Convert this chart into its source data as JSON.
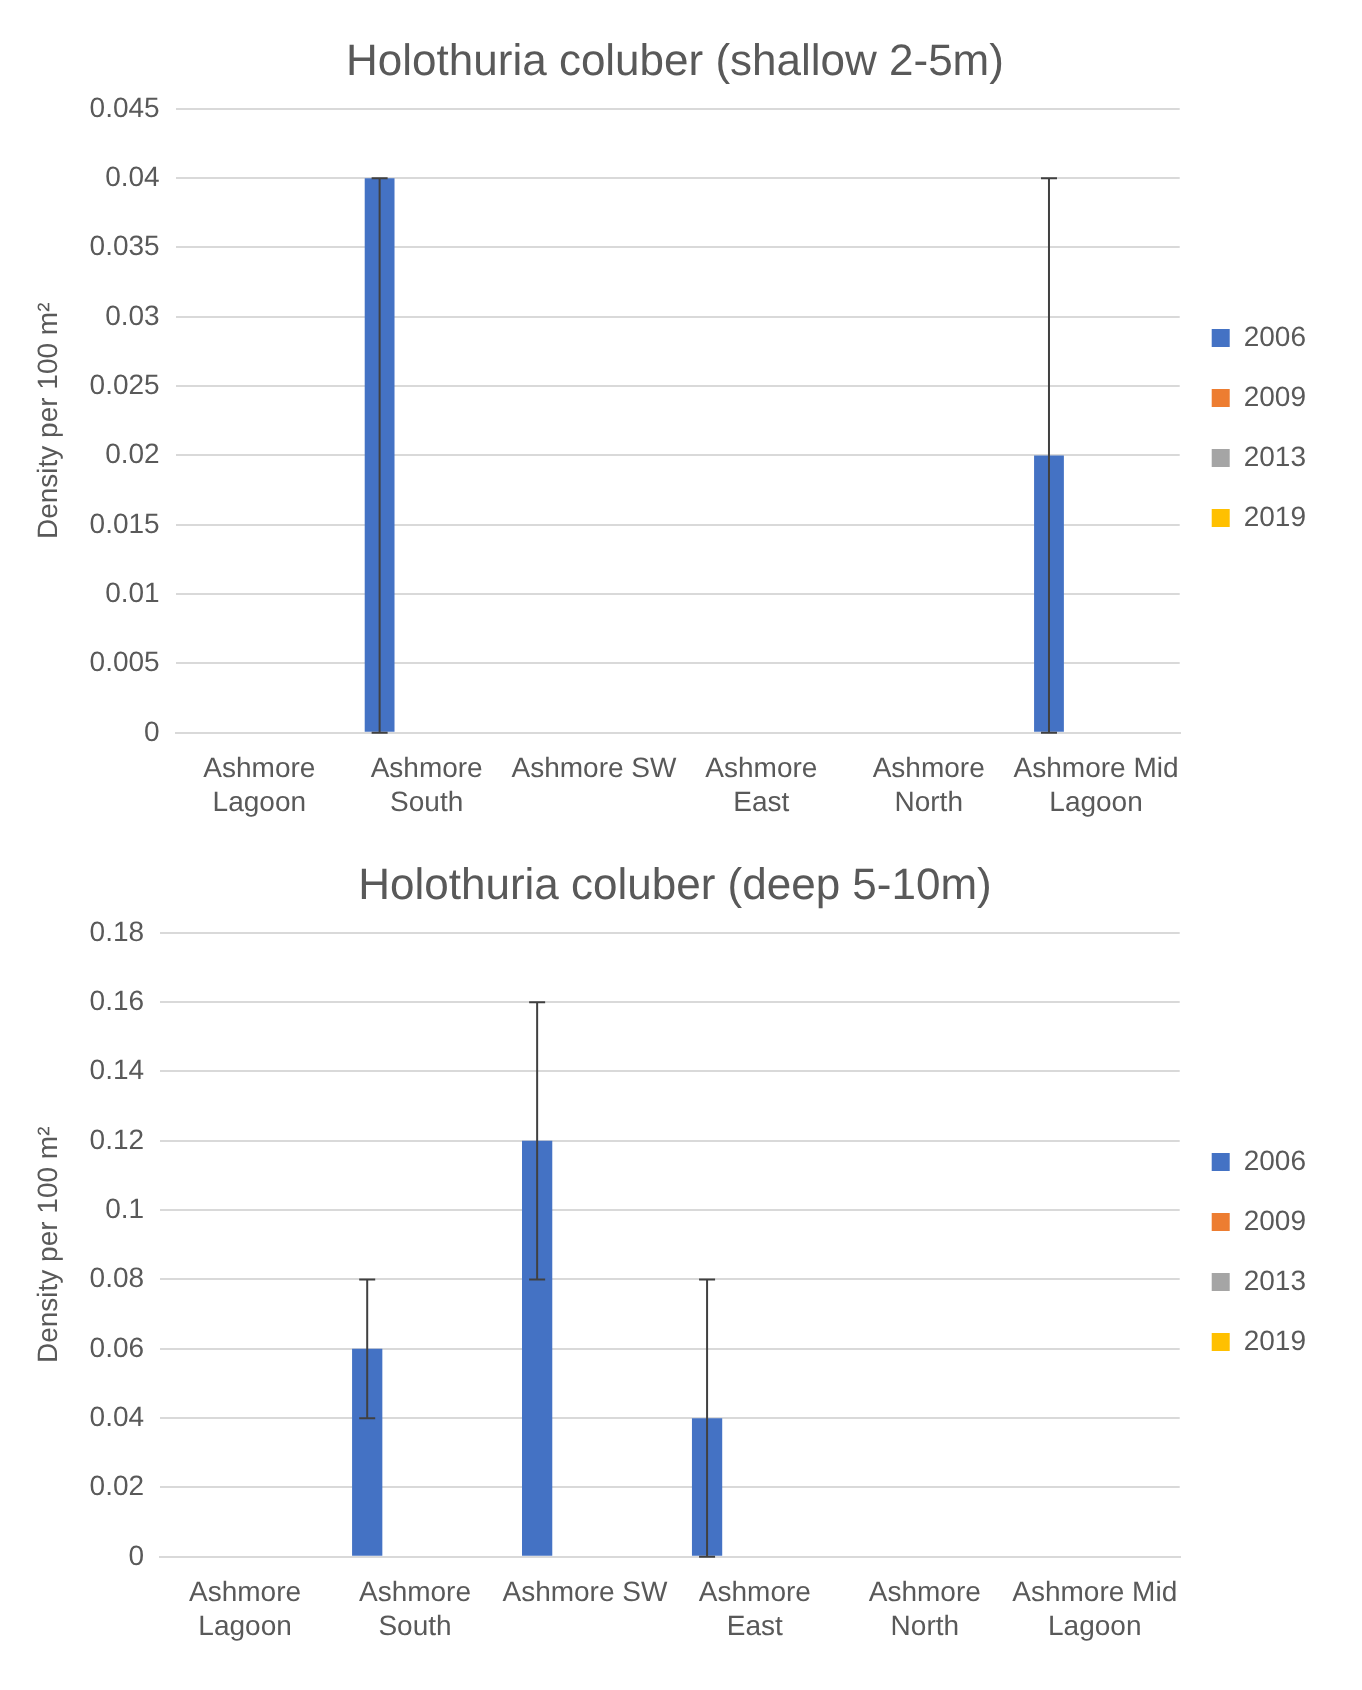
{
  "chart_data": [
    {
      "type": "bar",
      "title": "Holothuria coluber (shallow 2-5m)",
      "ylabel": "Density per 100 m²",
      "categories": [
        "Ashmore Lagoon",
        "Ashmore South",
        "Ashmore SW",
        "Ashmore East",
        "Ashmore North",
        "Ashmore Mid Lagoon"
      ],
      "series": [
        {
          "name": "2006",
          "color": "#4472c4",
          "values": [
            0,
            0.04,
            0,
            0,
            0,
            0.02
          ],
          "errors": [
            null,
            [
              0,
              0.04
            ],
            null,
            null,
            null,
            [
              0,
              0.04
            ]
          ]
        },
        {
          "name": "2009",
          "color": "#ed7d31",
          "values": [
            0,
            0,
            0,
            0,
            0,
            0
          ]
        },
        {
          "name": "2013",
          "color": "#a5a5a5",
          "values": [
            0,
            0,
            0,
            0,
            0,
            0
          ]
        },
        {
          "name": "2019",
          "color": "#ffc000",
          "values": [
            0,
            0,
            0,
            0,
            0,
            0
          ]
        }
      ],
      "ylim": [
        0,
        0.045
      ],
      "yticks": [
        0,
        0.005,
        0.01,
        0.015,
        0.02,
        0.025,
        0.03,
        0.035,
        0.04,
        0.045
      ],
      "grid": "y",
      "legend": "right"
    },
    {
      "type": "bar",
      "title": "Holothuria coluber (deep 5-10m)",
      "ylabel": "Density per 100 m²",
      "categories": [
        "Ashmore Lagoon",
        "Ashmore South",
        "Ashmore SW",
        "Ashmore East",
        "Ashmore North",
        "Ashmore Mid Lagoon"
      ],
      "series": [
        {
          "name": "2006",
          "color": "#4472c4",
          "values": [
            0,
            0.06,
            0.12,
            0.04,
            0,
            0
          ],
          "errors": [
            null,
            [
              0.04,
              0.08
            ],
            [
              0.08,
              0.16
            ],
            [
              0,
              0.08
            ],
            null,
            null
          ]
        },
        {
          "name": "2009",
          "color": "#ed7d31",
          "values": [
            0,
            0,
            0,
            0,
            0,
            0
          ]
        },
        {
          "name": "2013",
          "color": "#a5a5a5",
          "values": [
            0,
            0,
            0,
            0,
            0,
            0
          ]
        },
        {
          "name": "2019",
          "color": "#ffc000",
          "values": [
            0,
            0,
            0,
            0,
            0,
            0
          ]
        }
      ],
      "ylim": [
        0,
        0.18
      ],
      "yticks": [
        0,
        0.02,
        0.04,
        0.06,
        0.08,
        0.1,
        0.12,
        0.14,
        0.16,
        0.18
      ],
      "grid": "y",
      "legend": "right"
    }
  ]
}
